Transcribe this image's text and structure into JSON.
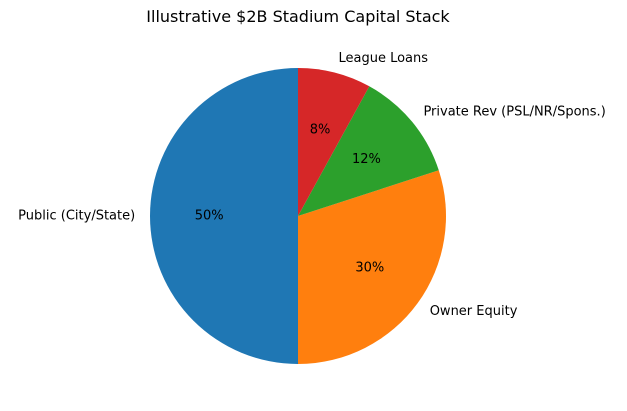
{
  "chart_data": {
    "type": "pie",
    "title": "Illustrative $2B Stadium Capital Stack",
    "start_angle_deg": 90,
    "direction": "counterclockwise",
    "slices": [
      {
        "label": "Public (City/State)",
        "value": 50,
        "pct_label": "50%",
        "color": "#1f77b4"
      },
      {
        "label": "Owner Equity",
        "value": 30,
        "pct_label": "30%",
        "color": "#ff7f0e"
      },
      {
        "label": "Private Rev (PSL/NR/Spons.)",
        "value": 12,
        "pct_label": "12%",
        "color": "#2ca02c"
      },
      {
        "label": "League Loans",
        "value": 8,
        "pct_label": "8%",
        "color": "#d62728"
      }
    ]
  }
}
